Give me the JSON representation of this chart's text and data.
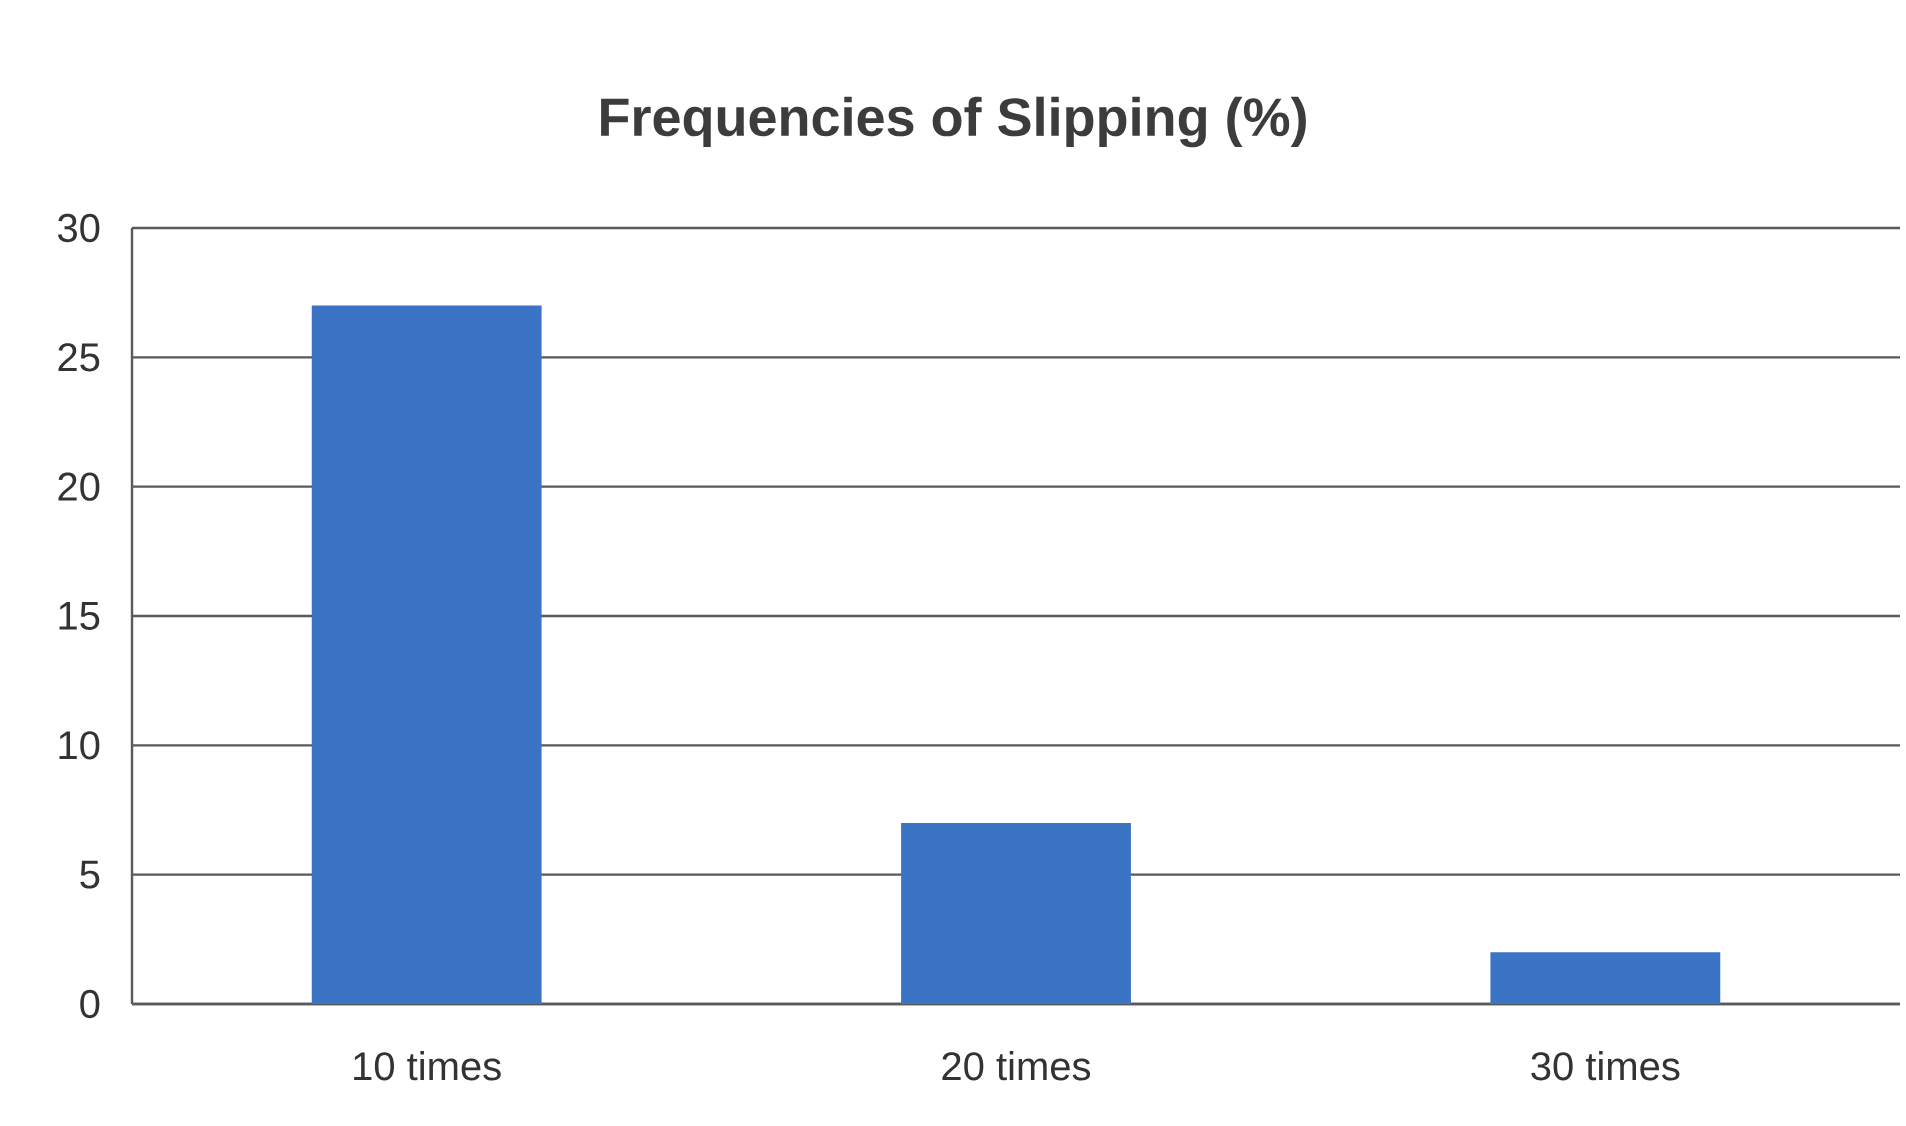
{
  "chart_data": {
    "type": "bar",
    "title": "Frequencies of Slipping (%)",
    "categories": [
      "10 times",
      "20 times",
      "30 times"
    ],
    "values": [
      27,
      7,
      2
    ],
    "color": "#3b74c4",
    "ylim": [
      0,
      30
    ],
    "yticks": [
      0,
      5,
      10,
      15,
      20,
      25,
      30
    ],
    "grid": "y"
  }
}
